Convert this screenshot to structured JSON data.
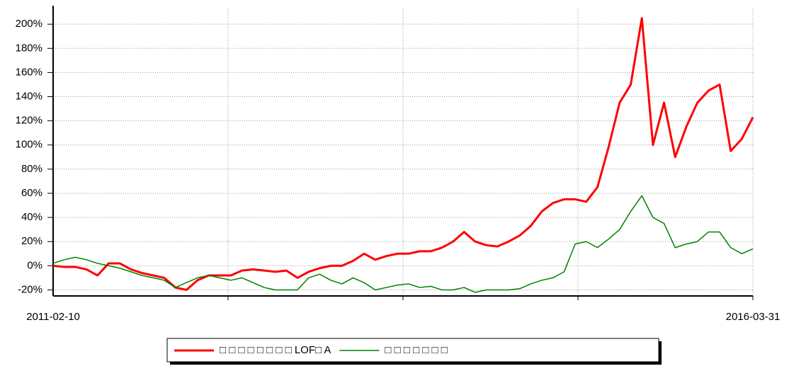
{
  "chart_data": {
    "type": "line",
    "categories": [
      "2011-02-10",
      null,
      null,
      null,
      null,
      null,
      null,
      null,
      null,
      null,
      null,
      null,
      null,
      null,
      null,
      null,
      null,
      null,
      null,
      null,
      null,
      null,
      null,
      null,
      null,
      null,
      null,
      null,
      null,
      null,
      null,
      null,
      null,
      null,
      null,
      null,
      null,
      null,
      null,
      null,
      null,
      null,
      null,
      null,
      null,
      null,
      null,
      null,
      null,
      null,
      null,
      null,
      null,
      null,
      null,
      null,
      null,
      null,
      null,
      null,
      null,
      null,
      null,
      "2016-03-31"
    ],
    "series": [
      {
        "name": "□ □ □ □ □ □ □ □ LOF□ A",
        "color": "#ff0000",
        "values": [
          0,
          -1,
          -1,
          -3,
          -8,
          2,
          2,
          -3,
          -6,
          -8,
          -10,
          -18,
          -20,
          -12,
          -8,
          -8,
          -8,
          -4,
          -3,
          -4,
          -5,
          -4,
          -10,
          -5,
          -2,
          0,
          0,
          4,
          10,
          5,
          8,
          10,
          10,
          12,
          12,
          15,
          20,
          28,
          20,
          17,
          16,
          20,
          25,
          33,
          45,
          52,
          55,
          55,
          53,
          65,
          98,
          135,
          150,
          205,
          100,
          135,
          90,
          115,
          135,
          145,
          150,
          95,
          105,
          123
        ]
      },
      {
        "name": "□ □ □ □ □ □ □",
        "color": "#008000",
        "values": [
          2,
          5,
          7,
          5,
          2,
          0,
          -2,
          -5,
          -8,
          -10,
          -12,
          -18,
          -14,
          -10,
          -8,
          -10,
          -12,
          -10,
          -14,
          -18,
          -20,
          -20,
          -20,
          -10,
          -7,
          -12,
          -15,
          -10,
          -14,
          -20,
          -18,
          -16,
          -15,
          -18,
          -17,
          -20,
          -20,
          -18,
          -22,
          -20,
          -20,
          -20,
          -19,
          -15,
          -12,
          -10,
          -5,
          18,
          20,
          15,
          22,
          30,
          45,
          58,
          40,
          35,
          15,
          18,
          20,
          28,
          28,
          15,
          10,
          14
        ]
      }
    ],
    "ylim": [
      -25,
      213
    ],
    "yticks": [
      {
        "value": -20,
        "label": "-20%"
      },
      {
        "value": 0,
        "label": "0%"
      },
      {
        "value": 20,
        "label": "20%"
      },
      {
        "value": 40,
        "label": "40%"
      },
      {
        "value": 60,
        "label": "60%"
      },
      {
        "value": 80,
        "label": "80%"
      },
      {
        "value": 100,
        "label": "100%"
      },
      {
        "value": 120,
        "label": "120%"
      },
      {
        "value": 140,
        "label": "140%"
      },
      {
        "value": 160,
        "label": "160%"
      },
      {
        "value": 180,
        "label": "180%"
      },
      {
        "value": 200,
        "label": "200%"
      }
    ],
    "grid": true
  }
}
